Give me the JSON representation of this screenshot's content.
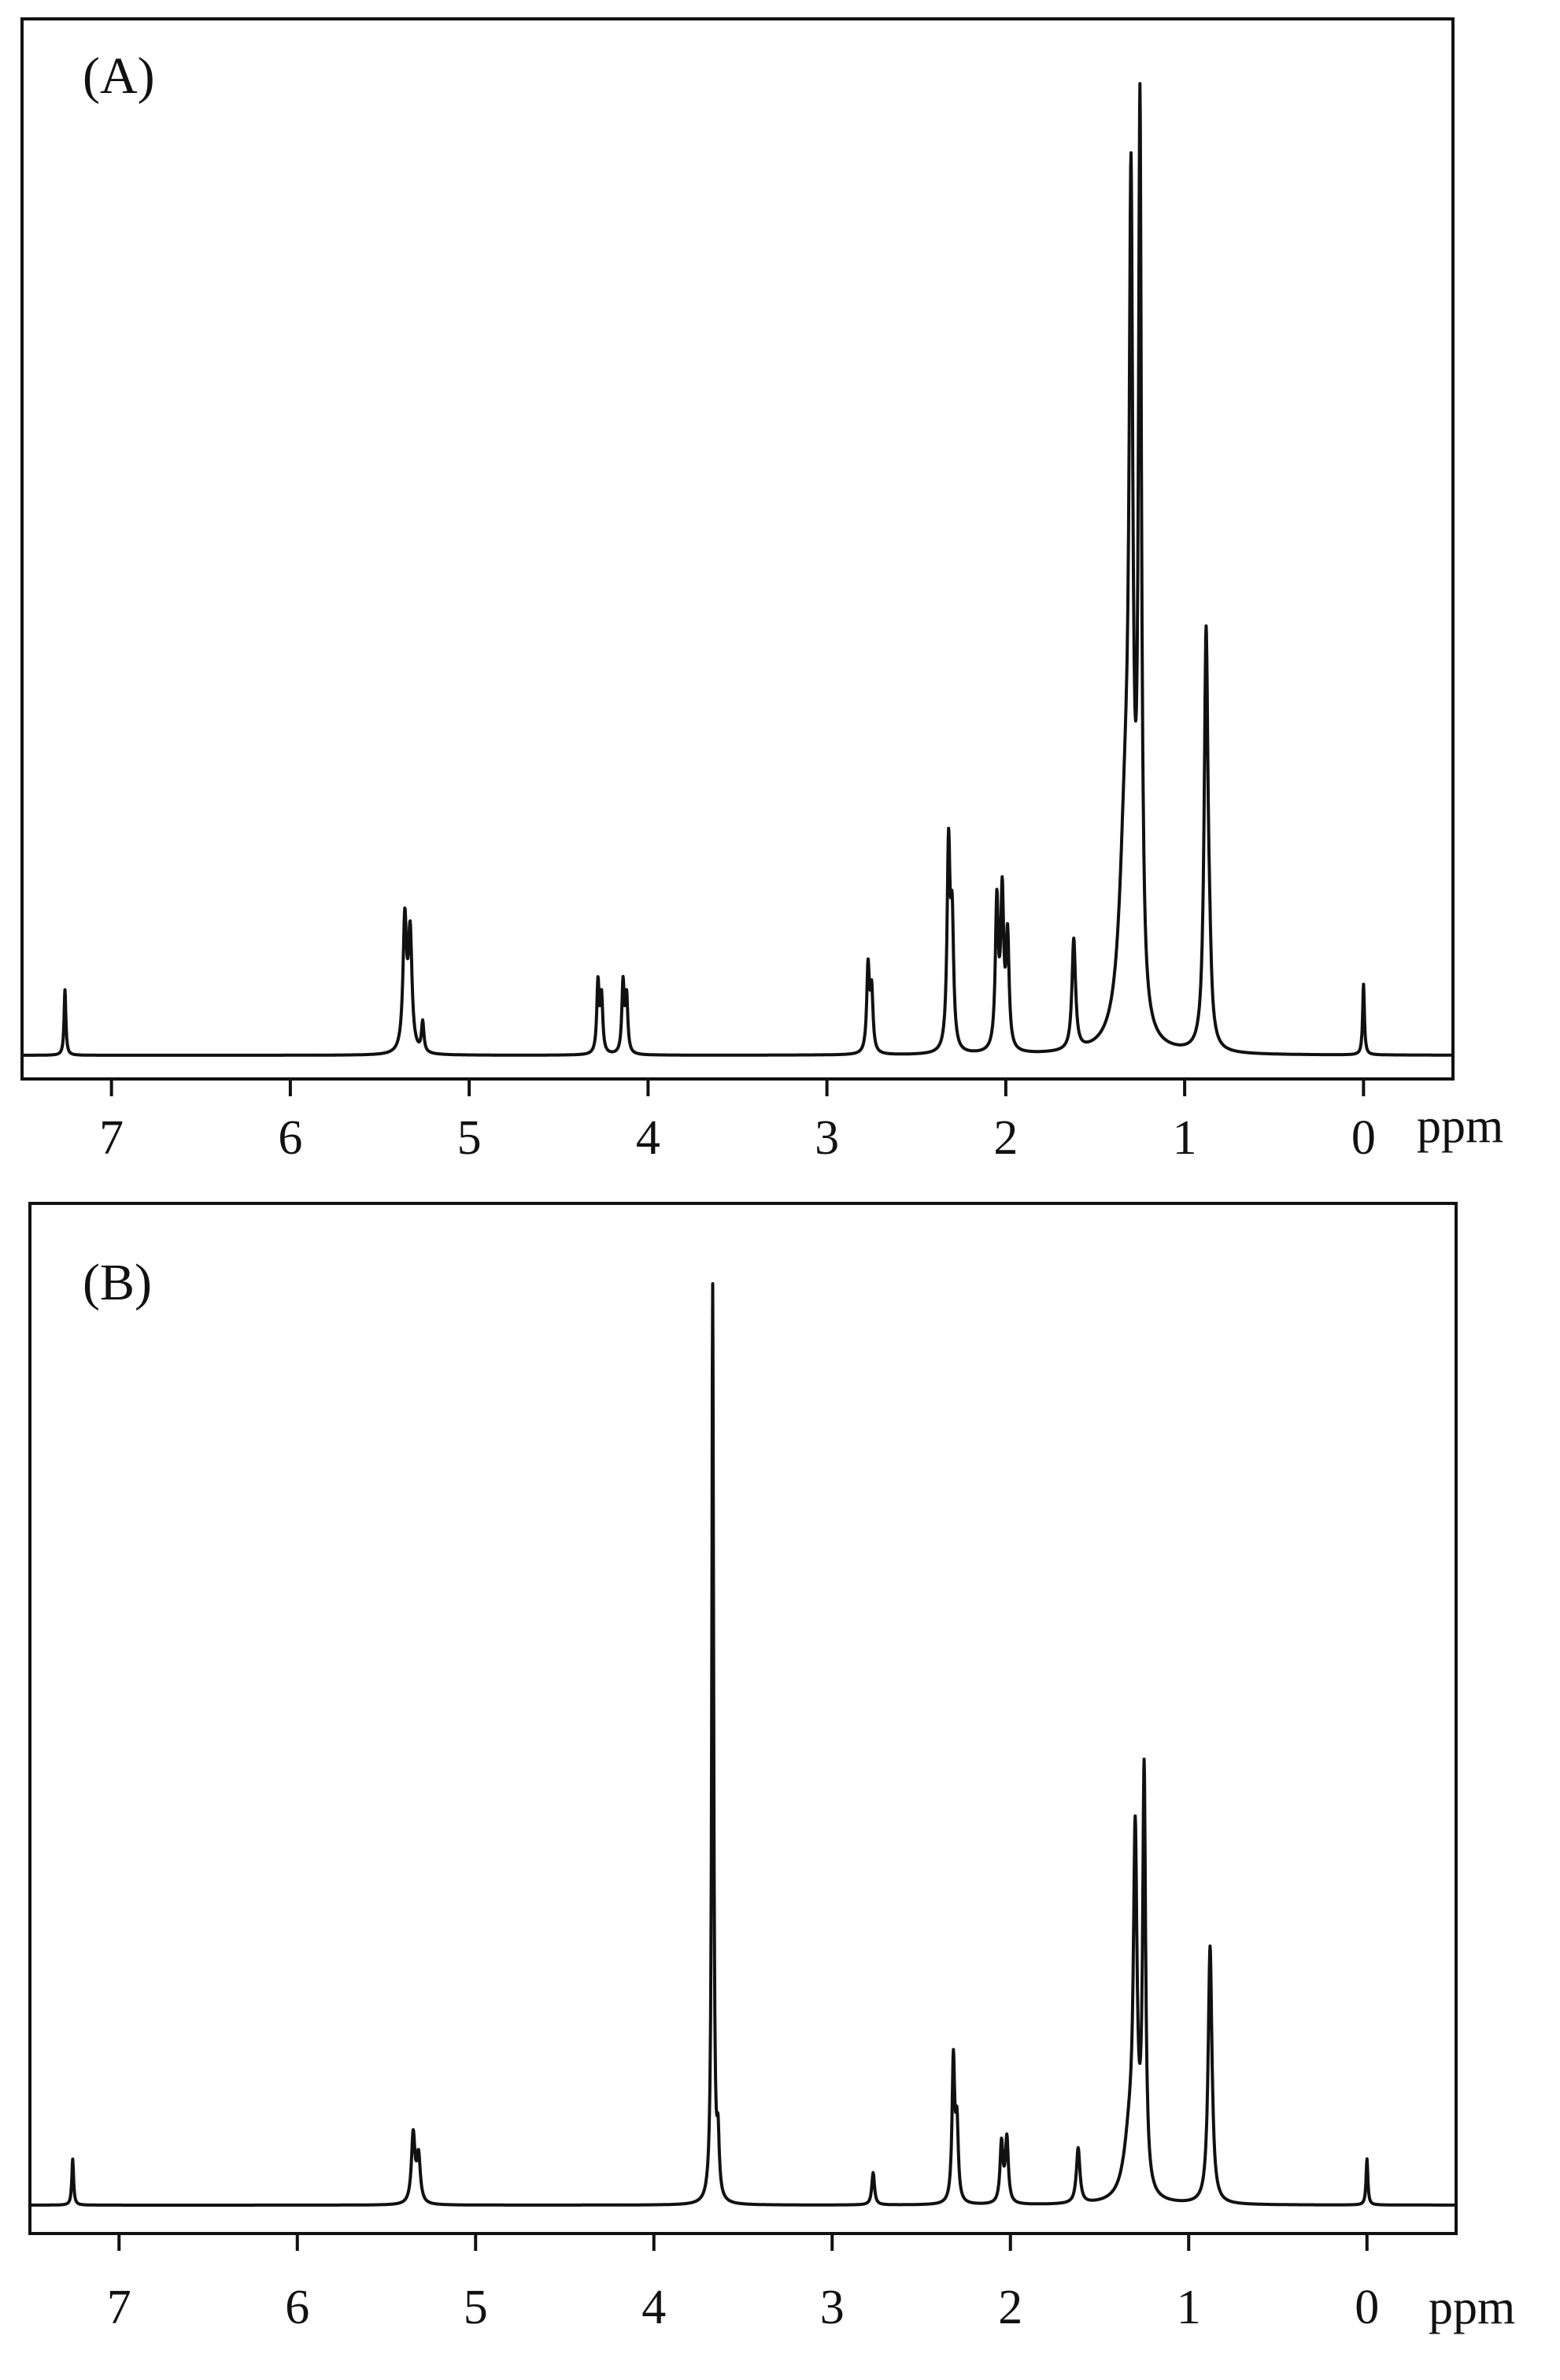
{
  "chart_data": [
    {
      "type": "line",
      "panel_label": "(A)",
      "xlabel": "ppm",
      "x_reversed": true,
      "xlim": [
        7.5,
        -0.5
      ],
      "ylim": [
        0,
        1.0
      ],
      "ticks": [
        7,
        6,
        5,
        4,
        3,
        2,
        1,
        0
      ],
      "tick_labels": [
        "7",
        "6",
        "5",
        "4",
        "3",
        "2",
        "1",
        "0"
      ],
      "grid": false,
      "peaks": [
        {
          "ppm": 7.26,
          "height": 0.065,
          "width": 0.006
        },
        {
          "ppm": 5.36,
          "height": 0.13,
          "width": 0.012
        },
        {
          "ppm": 5.33,
          "height": 0.115,
          "width": 0.012
        },
        {
          "ppm": 5.26,
          "height": 0.03,
          "width": 0.008
        },
        {
          "ppm": 4.28,
          "height": 0.07,
          "width": 0.008
        },
        {
          "ppm": 4.26,
          "height": 0.055,
          "width": 0.008
        },
        {
          "ppm": 4.14,
          "height": 0.07,
          "width": 0.008
        },
        {
          "ppm": 4.12,
          "height": 0.055,
          "width": 0.008
        },
        {
          "ppm": 2.77,
          "height": 0.085,
          "width": 0.009
        },
        {
          "ppm": 2.75,
          "height": 0.06,
          "width": 0.009
        },
        {
          "ppm": 2.32,
          "height": 0.2,
          "width": 0.01
        },
        {
          "ppm": 2.3,
          "height": 0.12,
          "width": 0.01
        },
        {
          "ppm": 2.05,
          "height": 0.145,
          "width": 0.01
        },
        {
          "ppm": 2.02,
          "height": 0.15,
          "width": 0.01
        },
        {
          "ppm": 1.99,
          "height": 0.11,
          "width": 0.01
        },
        {
          "ppm": 1.62,
          "height": 0.11,
          "width": 0.012
        },
        {
          "ppm": 1.33,
          "height": 0.22,
          "width": 0.04
        },
        {
          "ppm": 1.3,
          "height": 0.72,
          "width": 0.012
        },
        {
          "ppm": 1.25,
          "height": 0.88,
          "width": 0.01
        },
        {
          "ppm": 0.88,
          "height": 0.415,
          "width": 0.013
        },
        {
          "ppm": 0.86,
          "height": 0.04,
          "width": 0.01
        },
        {
          "ppm": 0.0,
          "height": 0.07,
          "width": 0.006
        }
      ]
    },
    {
      "type": "line",
      "panel_label": "(B)",
      "xlabel": "ppm",
      "x_reversed": true,
      "xlim": [
        7.5,
        -0.5
      ],
      "ylim": [
        0,
        1.0
      ],
      "ticks": [
        7,
        6,
        5,
        4,
        3,
        2,
        1,
        0
      ],
      "tick_labels": [
        "7",
        "6",
        "5",
        "4",
        "3",
        "2",
        "1",
        "0"
      ],
      "grid": false,
      "peaks": [
        {
          "ppm": 7.26,
          "height": 0.05,
          "width": 0.006
        },
        {
          "ppm": 5.35,
          "height": 0.075,
          "width": 0.012
        },
        {
          "ppm": 5.32,
          "height": 0.05,
          "width": 0.012
        },
        {
          "ppm": 3.67,
          "height": 1.0,
          "width": 0.006
        },
        {
          "ppm": 3.64,
          "height": 0.06,
          "width": 0.008
        },
        {
          "ppm": 2.77,
          "height": 0.035,
          "width": 0.009
        },
        {
          "ppm": 2.32,
          "height": 0.155,
          "width": 0.009
        },
        {
          "ppm": 2.3,
          "height": 0.08,
          "width": 0.009
        },
        {
          "ppm": 2.05,
          "height": 0.065,
          "width": 0.01
        },
        {
          "ppm": 2.02,
          "height": 0.07,
          "width": 0.01
        },
        {
          "ppm": 1.62,
          "height": 0.06,
          "width": 0.012
        },
        {
          "ppm": 1.33,
          "height": 0.07,
          "width": 0.04
        },
        {
          "ppm": 1.3,
          "height": 0.36,
          "width": 0.012
        },
        {
          "ppm": 1.25,
          "height": 0.45,
          "width": 0.01
        },
        {
          "ppm": 0.88,
          "height": 0.28,
          "width": 0.013
        },
        {
          "ppm": 0.0,
          "height": 0.05,
          "width": 0.006
        }
      ]
    }
  ]
}
